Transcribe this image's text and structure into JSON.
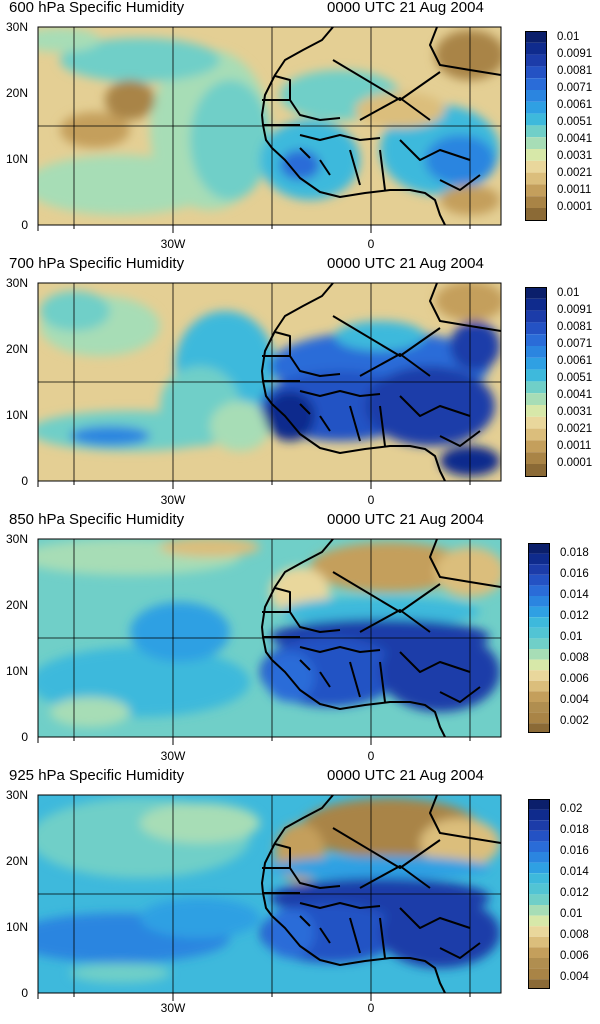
{
  "figure": {
    "panels": [
      {
        "title_left": "600 hPa Specific Humidity",
        "title_right": "0000 UTC 21 Aug 2004",
        "lat_labels": [
          "30N",
          "20N",
          "10N",
          "0"
        ],
        "lon_labels": [
          "30W",
          "0"
        ],
        "colorbar_labels": [
          "0.01",
          "0.0091",
          "0.0081",
          "0.0071",
          "0.0061",
          "0.0051",
          "0.0041",
          "0.0031",
          "0.0021",
          "0.0011",
          "0.0001"
        ]
      },
      {
        "title_left": "700 hPa Specific Humidity",
        "title_right": "0000 UTC 21 Aug 2004",
        "lat_labels": [
          "30N",
          "20N",
          "10N",
          "0"
        ],
        "lon_labels": [
          "30W",
          "0"
        ],
        "colorbar_labels": [
          "0.01",
          "0.0091",
          "0.0081",
          "0.0071",
          "0.0061",
          "0.0051",
          "0.0041",
          "0.0031",
          "0.0021",
          "0.0011",
          "0.0001"
        ]
      },
      {
        "title_left": "850 hPa Specific Humidity",
        "title_right": "0000 UTC 21 Aug 2004",
        "lat_labels": [
          "30N",
          "20N",
          "10N",
          "0"
        ],
        "lon_labels": [
          "30W",
          "0"
        ],
        "colorbar_labels": [
          "0.018",
          "0.016",
          "0.014",
          "0.012",
          "0.01",
          "0.008",
          "0.006",
          "0.004",
          "0.002"
        ]
      },
      {
        "title_left": "925 hPa Specific Humidity",
        "title_right": "0000 UTC 21 Aug 2004",
        "lat_labels": [
          "30N",
          "20N",
          "10N",
          "0"
        ],
        "lon_labels": [
          "30W",
          "0"
        ],
        "colorbar_labels": [
          "0.02",
          "0.018",
          "0.016",
          "0.014",
          "0.012",
          "0.01",
          "0.008",
          "0.006",
          "0.004"
        ]
      }
    ]
  },
  "colors": {
    "palette_brown_to_navy": [
      "#8b6a36",
      "#a98446",
      "#c49f5c",
      "#dbbe7c",
      "#e9d79c",
      "#d7e8a9",
      "#a7ddb6",
      "#70cfc8",
      "#3eb9dc",
      "#2fa0e3",
      "#2b85e0",
      "#2a6cd8",
      "#2452c4",
      "#1c3ca9",
      "#0f2b8d",
      "#0b1f6b"
    ]
  }
}
